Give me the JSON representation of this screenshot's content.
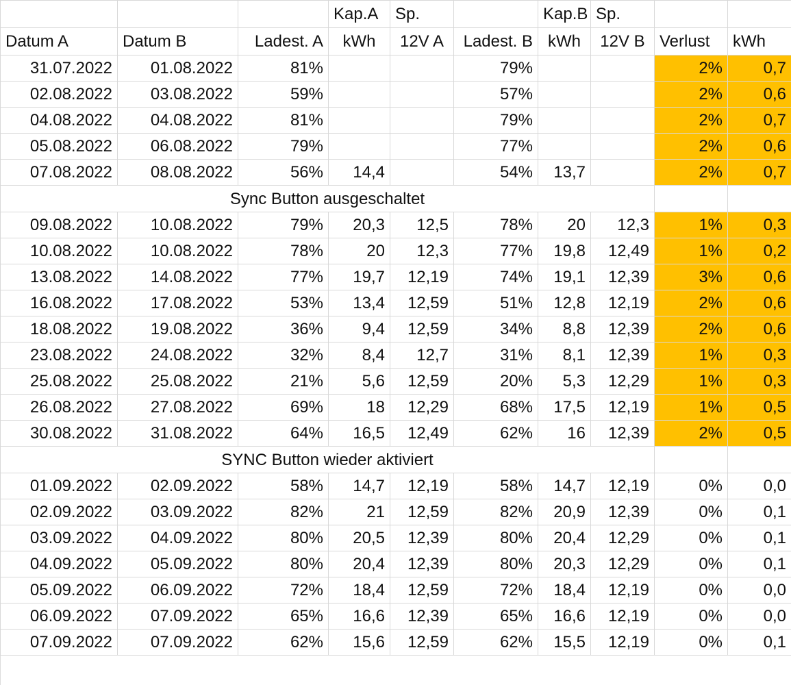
{
  "header": {
    "top": [
      "",
      "",
      "",
      "Kap.A",
      "Sp.",
      "",
      "Kap.B",
      "Sp.",
      "",
      ""
    ],
    "bottom": [
      "Datum A",
      "Datum B",
      "Ladest. A",
      "kWh",
      "12V A",
      "Ladest. B",
      "kWh",
      "12V B",
      "Verlust",
      "kWh"
    ]
  },
  "highlight_color": "#ffc000",
  "rows": [
    {
      "type": "data",
      "hl": true,
      "c": [
        "31.07.2022",
        "01.08.2022",
        "81%",
        "",
        "",
        "79%",
        "",
        "",
        "2%",
        "0,7"
      ]
    },
    {
      "type": "data",
      "hl": true,
      "c": [
        "02.08.2022",
        "03.08.2022",
        "59%",
        "",
        "",
        "57%",
        "",
        "",
        "2%",
        "0,6"
      ]
    },
    {
      "type": "data",
      "hl": true,
      "c": [
        "04.08.2022",
        "04.08.2022",
        "81%",
        "",
        "",
        "79%",
        "",
        "",
        "2%",
        "0,7"
      ]
    },
    {
      "type": "data",
      "hl": true,
      "c": [
        "05.08.2022",
        "06.08.2022",
        "79%",
        "",
        "",
        "77%",
        "",
        "",
        "2%",
        "0,6"
      ]
    },
    {
      "type": "data",
      "hl": true,
      "c": [
        "07.08.2022",
        "08.08.2022",
        "56%",
        "14,4",
        "",
        "54%",
        "13,7",
        "",
        "2%",
        "0,7"
      ]
    },
    {
      "type": "note",
      "text": "Sync Button ausgeschaltet"
    },
    {
      "type": "data",
      "hl": true,
      "c": [
        "09.08.2022",
        "10.08.2022",
        "79%",
        "20,3",
        "12,5",
        "78%",
        "20",
        "12,3",
        "1%",
        "0,3"
      ]
    },
    {
      "type": "data",
      "hl": true,
      "c": [
        "10.08.2022",
        "10.08.2022",
        "78%",
        "20",
        "12,3",
        "77%",
        "19,8",
        "12,49",
        "1%",
        "0,2"
      ]
    },
    {
      "type": "data",
      "hl": true,
      "c": [
        "13.08.2022",
        "14.08.2022",
        "77%",
        "19,7",
        "12,19",
        "74%",
        "19,1",
        "12,39",
        "3%",
        "0,6"
      ]
    },
    {
      "type": "data",
      "hl": true,
      "c": [
        "16.08.2022",
        "17.08.2022",
        "53%",
        "13,4",
        "12,59",
        "51%",
        "12,8",
        "12,19",
        "2%",
        "0,6"
      ]
    },
    {
      "type": "data",
      "hl": true,
      "c": [
        "18.08.2022",
        "19.08.2022",
        "36%",
        "9,4",
        "12,59",
        "34%",
        "8,8",
        "12,39",
        "2%",
        "0,6"
      ]
    },
    {
      "type": "data",
      "hl": true,
      "c": [
        "23.08.2022",
        "24.08.2022",
        "32%",
        "8,4",
        "12,7",
        "31%",
        "8,1",
        "12,39",
        "1%",
        "0,3"
      ]
    },
    {
      "type": "data",
      "hl": true,
      "c": [
        "25.08.2022",
        "25.08.2022",
        "21%",
        "5,6",
        "12,59",
        "20%",
        "5,3",
        "12,29",
        "1%",
        "0,3"
      ]
    },
    {
      "type": "data",
      "hl": true,
      "c": [
        "26.08.2022",
        "27.08.2022",
        "69%",
        "18",
        "12,29",
        "68%",
        "17,5",
        "12,19",
        "1%",
        "0,5"
      ]
    },
    {
      "type": "data",
      "hl": true,
      "c": [
        "30.08.2022",
        "31.08.2022",
        "64%",
        "16,5",
        "12,49",
        "62%",
        "16",
        "12,39",
        "2%",
        "0,5"
      ]
    },
    {
      "type": "note",
      "text": "SYNC Button wieder aktiviert"
    },
    {
      "type": "data",
      "hl": false,
      "c": [
        "01.09.2022",
        "02.09.2022",
        "58%",
        "14,7",
        "12,19",
        "58%",
        "14,7",
        "12,19",
        "0%",
        "0,0"
      ]
    },
    {
      "type": "data",
      "hl": false,
      "c": [
        "02.09.2022",
        "03.09.2022",
        "82%",
        "21",
        "12,59",
        "82%",
        "20,9",
        "12,39",
        "0%",
        "0,1"
      ]
    },
    {
      "type": "data",
      "hl": false,
      "c": [
        "03.09.2022",
        "04.09.2022",
        "80%",
        "20,5",
        "12,39",
        "80%",
        "20,4",
        "12,29",
        "0%",
        "0,1"
      ]
    },
    {
      "type": "data",
      "hl": false,
      "c": [
        "04.09.2022",
        "05.09.2022",
        "80%",
        "20,4",
        "12,39",
        "80%",
        "20,3",
        "12,29",
        "0%",
        "0,1"
      ]
    },
    {
      "type": "data",
      "hl": false,
      "c": [
        "05.09.2022",
        "06.09.2022",
        "72%",
        "18,4",
        "12,59",
        "72%",
        "18,4",
        "12,19",
        "0%",
        "0,0"
      ]
    },
    {
      "type": "data",
      "hl": false,
      "c": [
        "06.09.2022",
        "07.09.2022",
        "65%",
        "16,6",
        "12,39",
        "65%",
        "16,6",
        "12,19",
        "0%",
        "0,0"
      ]
    },
    {
      "type": "data",
      "hl": false,
      "c": [
        "07.09.2022",
        "07.09.2022",
        "62%",
        "15,6",
        "12,59",
        "62%",
        "15,5",
        "12,19",
        "0%",
        "0,1"
      ]
    }
  ]
}
